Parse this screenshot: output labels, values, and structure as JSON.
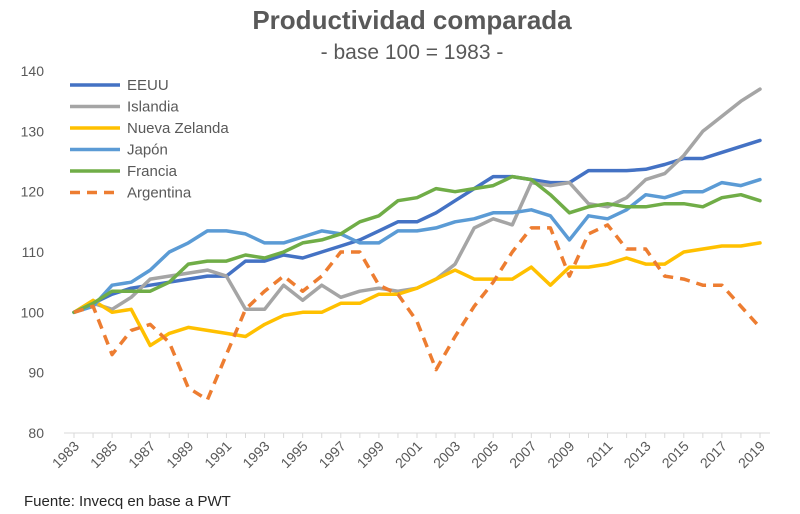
{
  "chart_data": {
    "type": "line",
    "title": "Productividad comparada",
    "subtitle": "- base 100 = 1983 -",
    "source": "Fuente: Invecq en base a PWT",
    "xlabel": "",
    "ylabel": "",
    "ylim": [
      80,
      140
    ],
    "yticks": [
      "80",
      "90",
      "100",
      "110",
      "120",
      "130",
      "140"
    ],
    "x": [
      1983,
      1984,
      1985,
      1986,
      1987,
      1988,
      1989,
      1990,
      1991,
      1992,
      1993,
      1994,
      1995,
      1996,
      1997,
      1998,
      1999,
      2000,
      2001,
      2002,
      2003,
      2004,
      2005,
      2006,
      2007,
      2008,
      2009,
      2010,
      2011,
      2012,
      2013,
      2014,
      2015,
      2016,
      2017,
      2018,
      2019
    ],
    "xticks": [
      "1983",
      "1985",
      "1987",
      "1989",
      "1991",
      "1993",
      "1995",
      "1997",
      "1999",
      "2001",
      "2003",
      "2005",
      "2007",
      "2009",
      "2011",
      "2013",
      "2015",
      "2017",
      "2019"
    ],
    "legend_position": "top-left",
    "series": [
      {
        "name": "EEUU",
        "color": "#4472c4",
        "dash": false,
        "values": [
          100,
          101.5,
          103,
          104,
          104.5,
          105,
          105.5,
          106,
          106,
          108.5,
          108.5,
          109.5,
          109,
          110,
          111,
          112,
          113.5,
          115,
          115,
          116.5,
          118.5,
          120.5,
          122.5,
          122.5,
          122,
          121.5,
          121.5,
          123.5,
          123.5,
          123.5,
          123.7,
          124.5,
          125.5,
          125.5,
          126.5,
          127.5,
          128.5
        ]
      },
      {
        "name": "Islandia",
        "color": "#a5a5a5",
        "dash": false,
        "values": [
          100,
          101.5,
          100.5,
          102.5,
          105.5,
          106,
          106.5,
          107,
          106,
          100.5,
          100.5,
          104.5,
          102,
          104.5,
          102.5,
          103.5,
          104,
          103.5,
          104,
          105.5,
          108,
          114,
          115.5,
          114.5,
          121.5,
          121,
          121.5,
          118,
          117.5,
          119,
          122,
          123,
          126,
          130,
          132.5,
          135,
          137
        ]
      },
      {
        "name": "Nueva Zelanda",
        "color": "#ffc000",
        "dash": false,
        "values": [
          100,
          102,
          100,
          100.5,
          94.5,
          96.5,
          97.5,
          97,
          96.5,
          96,
          98,
          99.5,
          100,
          100,
          101.5,
          101.5,
          103,
          103,
          104,
          105.5,
          107,
          105.5,
          105.5,
          105.5,
          107.5,
          104.5,
          107.5,
          107.5,
          108,
          109,
          108,
          108,
          110,
          110.5,
          111,
          111,
          111.5
        ]
      },
      {
        "name": "Japón",
        "color": "#5b9bd5",
        "dash": false,
        "values": [
          100,
          101,
          104.5,
          105,
          107,
          110,
          111.5,
          113.5,
          113.5,
          113,
          111.5,
          111.5,
          112.5,
          113.5,
          113,
          111.5,
          111.5,
          113.5,
          113.5,
          114,
          115,
          115.5,
          116.5,
          116.5,
          117,
          116,
          112,
          116,
          115.5,
          117,
          119.5,
          119,
          120,
          120,
          121.5,
          121,
          122
        ]
      },
      {
        "name": "Francia",
        "color": "#70ad47",
        "dash": false,
        "values": [
          100,
          101.5,
          103.5,
          103.5,
          103.5,
          105,
          108,
          108.5,
          108.5,
          109.5,
          109,
          110,
          111.5,
          112,
          113,
          115,
          116,
          118.5,
          119,
          120.5,
          120,
          120.5,
          121,
          122.5,
          122,
          119.5,
          116.5,
          117.5,
          118,
          117.5,
          117.5,
          118,
          118,
          117.5,
          119,
          119.5,
          118.5
        ]
      },
      {
        "name": "Argentina",
        "color": "#ed7d31",
        "dash": true,
        "values": [
          100,
          101,
          93,
          97,
          98,
          95,
          87.5,
          85.5,
          93,
          100.5,
          103.5,
          106,
          103.5,
          106,
          110,
          110,
          104.5,
          103,
          98.5,
          90.5,
          96,
          101,
          105,
          110,
          114,
          114,
          106,
          113,
          114.5,
          110.5,
          110.5,
          106,
          105.5,
          104.5,
          104.5,
          101,
          97.5
        ]
      }
    ]
  }
}
